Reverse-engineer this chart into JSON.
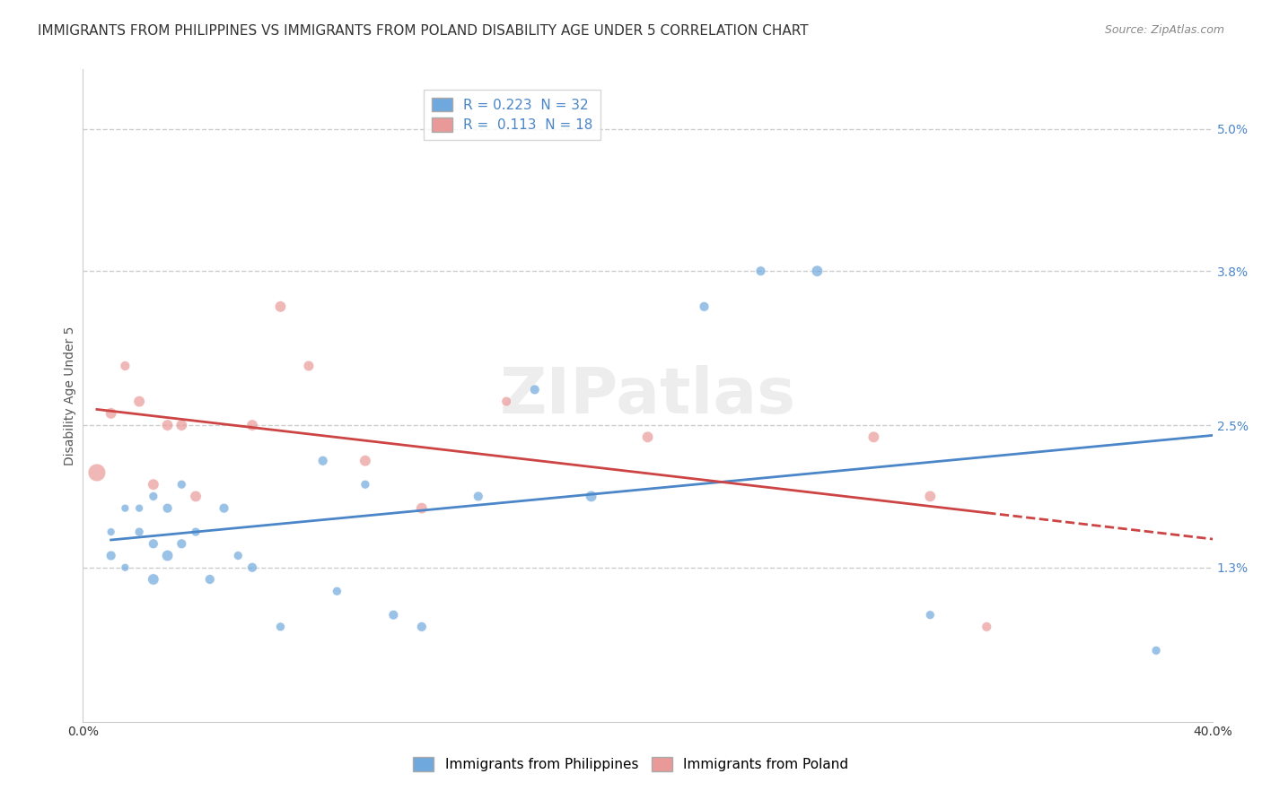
{
  "title": "IMMIGRANTS FROM PHILIPPINES VS IMMIGRANTS FROM POLAND DISABILITY AGE UNDER 5 CORRELATION CHART",
  "source": "Source: ZipAtlas.com",
  "xlabel": "",
  "ylabel": "Disability Age Under 5",
  "xlim": [
    0.0,
    0.4
  ],
  "ylim": [
    0.0,
    0.055
  ],
  "ytick_positions": [
    0.013,
    0.025,
    0.038,
    0.05
  ],
  "ytick_labels": [
    "1.3%",
    "2.5%",
    "3.8%",
    "5.0%"
  ],
  "blue_label": "Immigrants from Philippines",
  "pink_label": "Immigrants from Poland",
  "blue_R": 0.223,
  "blue_N": 32,
  "pink_R": 0.113,
  "pink_N": 18,
  "blue_color": "#6fa8dc",
  "pink_color": "#ea9999",
  "blue_line_color": "#4a86c8",
  "pink_line_color": "#cc4444",
  "watermark": "ZIPatlas",
  "blue_x": [
    0.01,
    0.01,
    0.015,
    0.015,
    0.02,
    0.02,
    0.025,
    0.025,
    0.025,
    0.03,
    0.03,
    0.035,
    0.035,
    0.04,
    0.045,
    0.05,
    0.055,
    0.06,
    0.07,
    0.085,
    0.09,
    0.1,
    0.11,
    0.12,
    0.14,
    0.16,
    0.18,
    0.22,
    0.24,
    0.26,
    0.3,
    0.38
  ],
  "blue_y": [
    0.014,
    0.016,
    0.013,
    0.018,
    0.016,
    0.018,
    0.012,
    0.015,
    0.019,
    0.014,
    0.018,
    0.015,
    0.02,
    0.016,
    0.012,
    0.018,
    0.014,
    0.013,
    0.008,
    0.022,
    0.011,
    0.02,
    0.009,
    0.008,
    0.019,
    0.028,
    0.019,
    0.035,
    0.038,
    0.038,
    0.009,
    0.006
  ],
  "blue_sizes": [
    60,
    40,
    40,
    40,
    50,
    40,
    80,
    60,
    50,
    80,
    60,
    60,
    50,
    50,
    60,
    60,
    50,
    60,
    50,
    60,
    50,
    50,
    60,
    60,
    60,
    60,
    80,
    60,
    60,
    80,
    50,
    50
  ],
  "pink_x": [
    0.005,
    0.01,
    0.015,
    0.02,
    0.025,
    0.03,
    0.035,
    0.04,
    0.06,
    0.07,
    0.08,
    0.1,
    0.12,
    0.15,
    0.2,
    0.28,
    0.3,
    0.32
  ],
  "pink_y": [
    0.021,
    0.026,
    0.03,
    0.027,
    0.02,
    0.025,
    0.025,
    0.019,
    0.025,
    0.035,
    0.03,
    0.022,
    0.018,
    0.027,
    0.024,
    0.024,
    0.019,
    0.008
  ],
  "pink_sizes": [
    200,
    80,
    60,
    80,
    80,
    80,
    80,
    80,
    80,
    80,
    70,
    80,
    80,
    60,
    80,
    80,
    80,
    60
  ],
  "grid_color": "#cccccc",
  "background_color": "#ffffff",
  "title_fontsize": 11,
  "axis_label_fontsize": 10,
  "tick_fontsize": 10,
  "legend_fontsize": 11
}
